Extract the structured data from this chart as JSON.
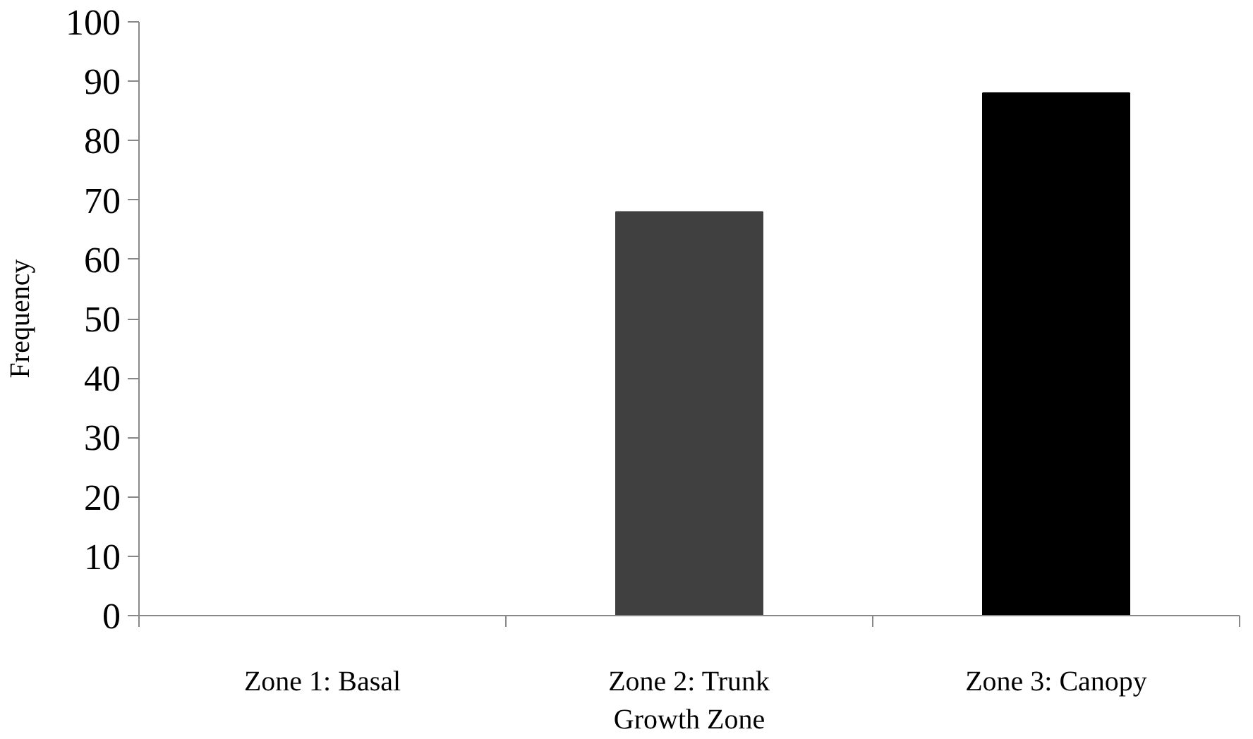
{
  "chart_data": {
    "type": "bar",
    "xlabel": "Growth Zone",
    "ylabel": "Frequency",
    "categories": [
      "Zone 1: Basal",
      "Zone 2: Trunk",
      "Zone 3: Canopy"
    ],
    "values": [
      0,
      68,
      88
    ],
    "colors": [
      "#404040",
      "#404040",
      "#000000"
    ],
    "ylim": [
      0,
      100
    ],
    "yticks": [
      0,
      10,
      20,
      30,
      40,
      50,
      60,
      70,
      80,
      90,
      100
    ],
    "grid": false
  }
}
